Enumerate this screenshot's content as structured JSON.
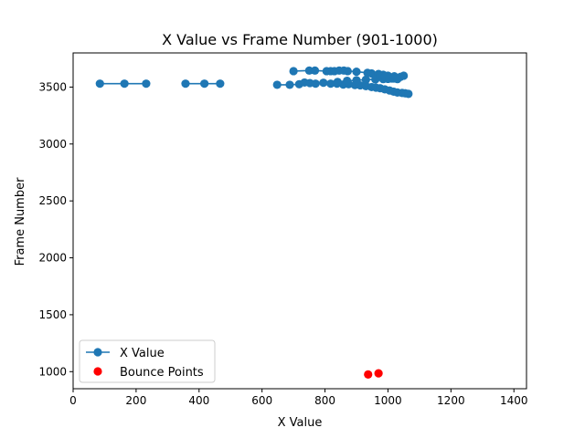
{
  "chart_data": {
    "type": "scatter",
    "title": "X Value vs Frame Number (901-1000)",
    "xlabel": "X Value",
    "ylabel": "Frame Number",
    "xlim": [
      0,
      1440
    ],
    "ylim": [
      850,
      3800
    ],
    "x_ticks": [
      0,
      200,
      400,
      600,
      800,
      1000,
      1200,
      1400
    ],
    "y_ticks": [
      1000,
      1500,
      2000,
      2500,
      3000,
      3500
    ],
    "grid": false,
    "legend_position": "lower-left",
    "series": [
      {
        "name": "X Value",
        "mode": "line-markers",
        "color": "#1f77b4",
        "segments": [
          {
            "x": [
              85,
              163,
              232
            ],
            "y": [
              3530,
              3530,
              3530
            ]
          },
          {
            "x": [
              357,
              417,
              467
            ],
            "y": [
              3530,
              3530,
              3530
            ]
          },
          {
            "x": [
              648,
              688,
              718,
              735,
              752,
              770,
              795,
              818,
              838,
              858,
              875,
              895,
              912,
              930,
              948,
              962,
              975,
              990,
              1005,
              1018,
              1030,
              1045,
              1055,
              1065
            ],
            "y": [
              3520,
              3520,
              3525,
              3540,
              3535,
              3530,
              3538,
              3530,
              3530,
              3522,
              3525,
              3518,
              3515,
              3508,
              3500,
              3495,
              3490,
              3480,
              3470,
              3460,
              3452,
              3448,
              3445,
              3440
            ]
          },
          {
            "x": [
              700,
              750,
              768,
              805,
              818,
              830,
              845,
              860,
              872,
              900,
              935,
              948,
              970,
              985,
              1000,
              1020,
              1050
            ],
            "y": [
              3640,
              3645,
              3645,
              3640,
              3640,
              3640,
              3645,
              3645,
              3640,
              3635,
              3625,
              3620,
              3615,
              3608,
              3600,
              3595,
              3600
            ]
          },
          {
            "x": [
              840,
              870,
              900,
              930,
              960,
              985,
              1000,
              1012,
              1025,
              1040
            ],
            "y": [
              3545,
              3555,
              3560,
              3565,
              3568,
              3570,
              3572,
              3575,
              3580,
              3590
            ]
          },
          {
            "x": [
              975,
              990,
              1005,
              1018,
              1030
            ],
            "y": [
              3600,
              3590,
              3580,
              3575,
              3570
            ]
          }
        ]
      },
      {
        "name": "Bounce Points",
        "mode": "markers",
        "color": "#ff0000",
        "x": [
          937,
          970
        ],
        "y": [
          975,
          985
        ]
      }
    ]
  }
}
